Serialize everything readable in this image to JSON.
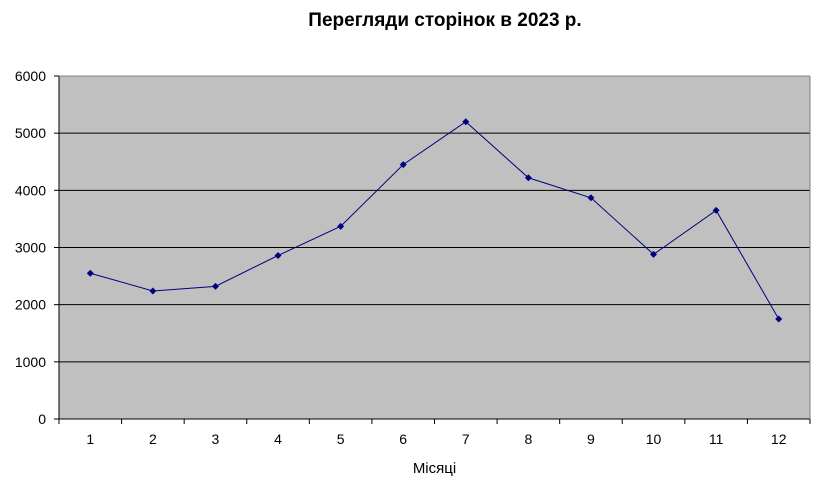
{
  "chart_data": {
    "type": "line",
    "title": "Перегляди сторінок в 2023 р.",
    "xlabel": "Місяці",
    "ylabel": "",
    "categories": [
      "1",
      "2",
      "3",
      "4",
      "5",
      "6",
      "7",
      "8",
      "9",
      "10",
      "11",
      "12"
    ],
    "series": [
      {
        "values": [
          2550,
          2240,
          2320,
          2860,
          3370,
          4450,
          5200,
          4220,
          3870,
          2880,
          3650,
          1750
        ]
      }
    ],
    "ylim": [
      0,
      6000
    ],
    "yticks": [
      0,
      1000,
      2000,
      3000,
      4000,
      5000,
      6000
    ],
    "grid": true,
    "legend": "none",
    "colors": {
      "plot_background": "#c0c0c0",
      "line": "#000080",
      "marker": "#000080",
      "grid": "#000000"
    }
  }
}
